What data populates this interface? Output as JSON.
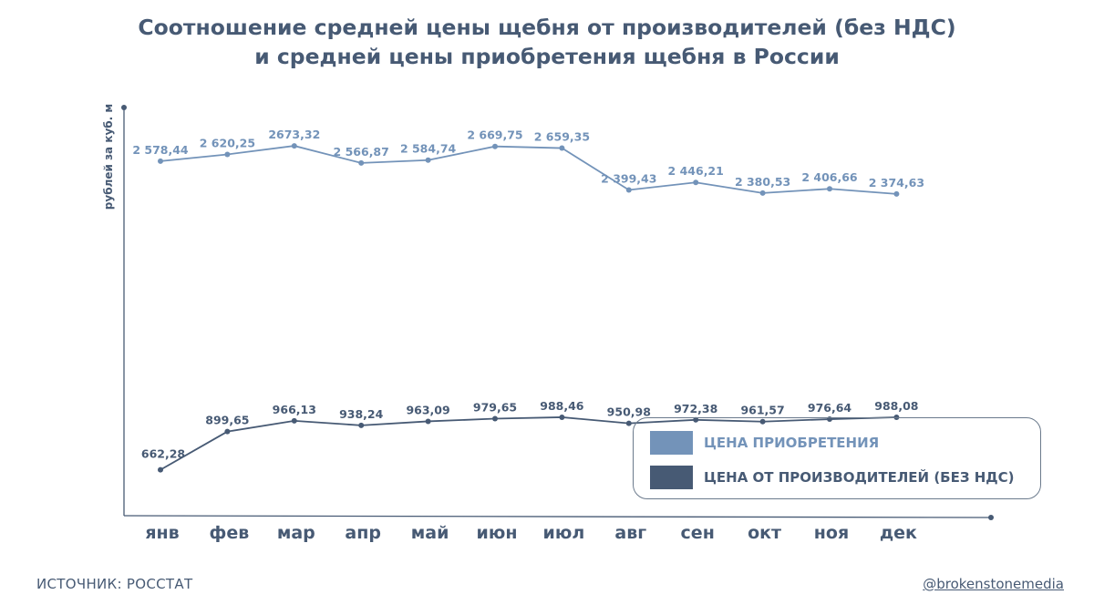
{
  "colors": {
    "purchase": "#7393b9",
    "producer": "#475a74",
    "text": "#475a74",
    "axis": "#475a74"
  },
  "chart_data": {
    "type": "line",
    "title_lines": [
      "Соотношение средней цены щебня от производителей (без НДС)",
      "и средней цены приобретения щебня в России"
    ],
    "title": "Соотношение средней цены щебня от производителей (без НДС) и средней цены приобретения щебня в России",
    "ylabel": "рублей за куб. м",
    "xlabel": "",
    "categories": [
      "янв",
      "фев",
      "мар",
      "апр",
      "май",
      "июн",
      "июл",
      "авг",
      "сен",
      "окт",
      "ноя",
      "дек"
    ],
    "ylim": [
      400,
      2900
    ],
    "grid": false,
    "legend_position": "bottom-right",
    "series": [
      {
        "name": "ЦЕНА ПРИОБРЕТЕНИЯ",
        "key": "purchase",
        "values": [
          2578.44,
          2620.25,
          2673.32,
          2566.87,
          2584.74,
          2669.75,
          2659.35,
          2399.43,
          2446.21,
          2380.53,
          2406.66,
          2374.63
        ],
        "labels": [
          "2 578,44",
          "2 620,25",
          "2673,32",
          "2 566,87",
          "2 584,74",
          "2 669,75",
          "2 659,35",
          "2 399,43",
          "2 446,21",
          "2 380,53",
          "2 406,66",
          "2 374,63"
        ]
      },
      {
        "name": "ЦЕНА ОТ ПРОИЗВОДИТЕЛЕЙ (БЕЗ НДС)",
        "key": "producer",
        "values": [
          662.28,
          899.65,
          966.13,
          938.24,
          963.09,
          979.65,
          988.46,
          950.98,
          972.38,
          961.57,
          976.64,
          988.08
        ],
        "labels": [
          "662,28",
          "899,65",
          "966,13",
          "938,24",
          "963,09",
          "979,65",
          "988,46",
          "950,98",
          "972,38",
          "961,57",
          "976,64",
          "988,08"
        ]
      }
    ]
  },
  "footer": {
    "source": "ИСТОЧНИК: РОССТАТ",
    "handle": "@brokenstonemedia"
  }
}
